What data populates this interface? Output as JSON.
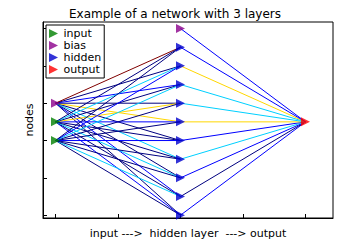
{
  "chart_data": {
    "type": "scatter",
    "title": "Example of a network with 3 layers",
    "x_label": "input --->  hidden layer  ---> output",
    "y_label": "nodes",
    "xlim": [
      -0.1,
      2.22
    ],
    "xticks": [
      0,
      0.5,
      1,
      1.5,
      2
    ],
    "ylim": [
      -0.15,
      10.35
    ],
    "yticks": [
      0,
      2,
      4,
      6,
      8,
      10
    ],
    "grid": false,
    "tick_labels": false,
    "legend": "upper left",
    "marker": "triangle-right",
    "series": [
      {
        "name": "input",
        "color": "#008000",
        "x": [
          0,
          0
        ],
        "values": [
          5,
          4
        ]
      },
      {
        "name": "bias",
        "color": "#8b008b",
        "x": [
          0,
          1
        ],
        "values": [
          6,
          10
        ]
      },
      {
        "name": "hidden",
        "color": "#0000cd",
        "x": [
          1,
          1,
          1,
          1,
          1,
          1,
          1,
          1,
          1,
          1
        ],
        "values": [
          0,
          1,
          2,
          3,
          4,
          5,
          6,
          7,
          8,
          9
        ]
      },
      {
        "name": "output",
        "color": "#ff0000",
        "x": [
          2
        ],
        "values": [
          5
        ]
      }
    ],
    "edges": [
      {
        "x": [
          0,
          1
        ],
        "values": [
          6,
          0
        ],
        "color": "#00007f"
      },
      {
        "x": [
          0,
          1
        ],
        "values": [
          6,
          1
        ],
        "color": "#0000ff"
      },
      {
        "x": [
          0,
          1
        ],
        "values": [
          6,
          2
        ],
        "color": "#00007f"
      },
      {
        "x": [
          0,
          1
        ],
        "values": [
          6,
          3
        ],
        "color": "#00d0ff"
      },
      {
        "x": [
          0,
          1
        ],
        "values": [
          6,
          4
        ],
        "color": "#00007f"
      },
      {
        "x": [
          0,
          1
        ],
        "values": [
          6,
          5
        ],
        "color": "#ffd700"
      },
      {
        "x": [
          0,
          1
        ],
        "values": [
          6,
          6
        ],
        "color": "#00007f"
      },
      {
        "x": [
          0,
          1
        ],
        "values": [
          6,
          7
        ],
        "color": "#0000ff"
      },
      {
        "x": [
          0,
          1
        ],
        "values": [
          6,
          8
        ],
        "color": "#00007f"
      },
      {
        "x": [
          0,
          1
        ],
        "values": [
          6,
          9
        ],
        "color": "#7f0000"
      },
      {
        "x": [
          0,
          1
        ],
        "values": [
          5,
          0
        ],
        "color": "#0000ff"
      },
      {
        "x": [
          0,
          1
        ],
        "values": [
          5,
          1
        ],
        "color": "#00007f"
      },
      {
        "x": [
          0,
          1
        ],
        "values": [
          5,
          2
        ],
        "color": "#00d0ff"
      },
      {
        "x": [
          0,
          1
        ],
        "values": [
          5,
          3
        ],
        "color": "#00007f"
      },
      {
        "x": [
          0,
          1
        ],
        "values": [
          5,
          4
        ],
        "color": "#00007f"
      },
      {
        "x": [
          0,
          1
        ],
        "values": [
          5,
          5
        ],
        "color": "#0000ff"
      },
      {
        "x": [
          0,
          1
        ],
        "values": [
          5,
          6
        ],
        "color": "#ffd700"
      },
      {
        "x": [
          0,
          1
        ],
        "values": [
          5,
          7
        ],
        "color": "#00007f"
      },
      {
        "x": [
          0,
          1
        ],
        "values": [
          5,
          8
        ],
        "color": "#00d0ff"
      },
      {
        "x": [
          0,
          1
        ],
        "values": [
          5,
          9
        ],
        "color": "#00007f"
      },
      {
        "x": [
          0,
          1
        ],
        "values": [
          4,
          0
        ],
        "color": "#00007f"
      },
      {
        "x": [
          0,
          1
        ],
        "values": [
          4,
          1
        ],
        "color": "#00d0ff"
      },
      {
        "x": [
          0,
          1
        ],
        "values": [
          4,
          2
        ],
        "color": "#00007f"
      },
      {
        "x": [
          0,
          1
        ],
        "values": [
          4,
          3
        ],
        "color": "#00007f"
      },
      {
        "x": [
          0,
          1
        ],
        "values": [
          4,
          4
        ],
        "color": "#0000ff"
      },
      {
        "x": [
          0,
          1
        ],
        "values": [
          4,
          5
        ],
        "color": "#00007f"
      },
      {
        "x": [
          0,
          1
        ],
        "values": [
          4,
          6
        ],
        "color": "#00007f"
      },
      {
        "x": [
          0,
          1
        ],
        "values": [
          4,
          7
        ],
        "color": "#00d0ff"
      },
      {
        "x": [
          0,
          1
        ],
        "values": [
          4,
          8
        ],
        "color": "#0000ff"
      },
      {
        "x": [
          0,
          1
        ],
        "values": [
          4,
          9
        ],
        "color": "#00007f"
      },
      {
        "x": [
          1,
          2
        ],
        "values": [
          0,
          5
        ],
        "color": "#0000ff"
      },
      {
        "x": [
          1,
          2
        ],
        "values": [
          1,
          5
        ],
        "color": "#00007f"
      },
      {
        "x": [
          1,
          2
        ],
        "values": [
          2,
          5
        ],
        "color": "#0000ff"
      },
      {
        "x": [
          1,
          2
        ],
        "values": [
          3,
          5
        ],
        "color": "#00d0ff"
      },
      {
        "x": [
          1,
          2
        ],
        "values": [
          4,
          5
        ],
        "color": "#0000ff"
      },
      {
        "x": [
          1,
          2
        ],
        "values": [
          5,
          5
        ],
        "color": "#ffd700"
      },
      {
        "x": [
          1,
          2
        ],
        "values": [
          6,
          5
        ],
        "color": "#00d0ff"
      },
      {
        "x": [
          1,
          2
        ],
        "values": [
          7,
          5
        ],
        "color": "#00d0ff"
      },
      {
        "x": [
          1,
          2
        ],
        "values": [
          8,
          5
        ],
        "color": "#ffd700"
      },
      {
        "x": [
          1,
          2
        ],
        "values": [
          9,
          5
        ],
        "color": "#0000ff"
      },
      {
        "x": [
          1,
          2
        ],
        "values": [
          10,
          5
        ],
        "color": "#0000ff"
      }
    ]
  }
}
